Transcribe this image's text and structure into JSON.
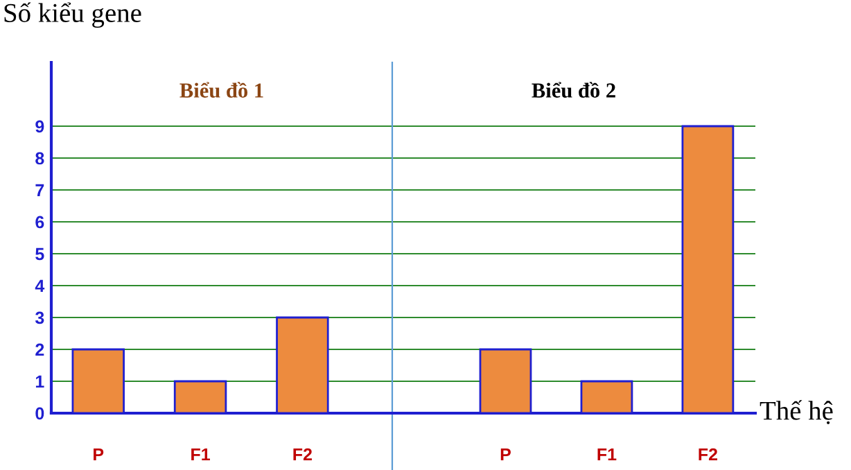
{
  "chart_data": [
    {
      "type": "bar",
      "title": "Biểu đồ 1",
      "ylabel": "Số kiểu gene",
      "categories": [
        "P",
        "F1",
        "F2"
      ],
      "series": [
        {
          "color": "#ed8b3e",
          "values": [
            2,
            1,
            3
          ]
        }
      ],
      "ylim": [
        0,
        11
      ],
      "yticks": [
        0,
        1,
        2,
        3,
        4,
        5,
        6,
        7,
        8,
        9
      ],
      "grid": "y"
    },
    {
      "type": "bar",
      "title": "Biểu đồ 2",
      "xlabel": "Thế hệ",
      "categories": [
        "P",
        "F1",
        "F2"
      ],
      "series": [
        {
          "color": "#ed8b3e",
          "values": [
            2,
            1,
            9
          ]
        }
      ],
      "ylim": [
        0,
        11
      ],
      "yticks": [
        0,
        1,
        2,
        3,
        4,
        5,
        6,
        7,
        8,
        9
      ],
      "grid": "y",
      "tick_labels": "x"
    }
  ]
}
